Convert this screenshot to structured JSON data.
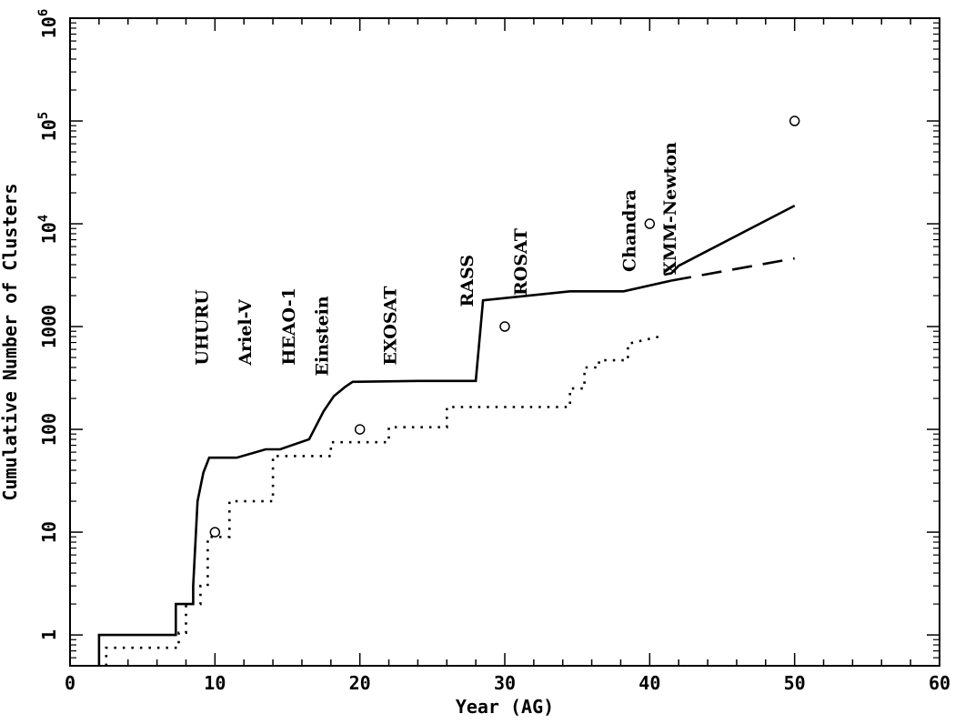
{
  "chart_data": {
    "type": "line",
    "title": "",
    "xlabel": "Year (AG)",
    "ylabel": "Cumulative Number of Clusters",
    "xlim": [
      0,
      60
    ],
    "ylim_log10": [
      -0.3,
      6
    ],
    "yscale": "log",
    "x_ticks": [
      0,
      10,
      20,
      30,
      40,
      50,
      60
    ],
    "y_ticks": [
      {
        "value": 1,
        "label": "1"
      },
      {
        "value": 10,
        "label": "10"
      },
      {
        "value": 100,
        "label": "100"
      },
      {
        "value": 1000,
        "label": "1000"
      },
      {
        "value": 10000,
        "base": "10",
        "exp": "4"
      },
      {
        "value": 100000,
        "base": "10",
        "exp": "5"
      },
      {
        "value": 1000000,
        "base": "10",
        "exp": "6"
      }
    ],
    "series": [
      {
        "style": "solid",
        "x": [
          2,
          2,
          7.3,
          7.3,
          8.5,
          8.5,
          8.8,
          9.2,
          9.6,
          10,
          11.5,
          13.5,
          14.5,
          16.5,
          17.5,
          18.2,
          19,
          19.5,
          24,
          28,
          28.5,
          34.5,
          38.2,
          41.5
        ],
        "y": [
          0.5,
          1,
          1,
          2,
          2,
          3,
          20,
          38,
          53,
          53,
          53,
          64,
          64,
          80,
          150,
          210,
          260,
          290,
          296,
          296,
          1800,
          2200,
          2200,
          2800
        ]
      },
      {
        "style": "solid",
        "x": [
          41,
          41.5,
          42,
          50
        ],
        "y": [
          3200,
          3300,
          3900,
          15000
        ]
      },
      {
        "style": "dashed",
        "x": [
          41.5,
          50
        ],
        "y": [
          2800,
          4600
        ]
      },
      {
        "style": "dotted",
        "x": [
          2.5,
          2.5,
          7.5,
          7.5,
          8,
          8,
          9,
          9,
          9.5,
          9.5,
          10.5,
          10.5,
          11,
          11,
          14,
          14,
          18,
          18,
          22,
          22,
          26,
          26,
          34.5,
          34.5,
          35.5,
          35.5,
          36.5,
          36.5,
          38.5,
          38.5,
          41
        ],
        "y": [
          0.5,
          0.75,
          0.75,
          1.05,
          1.05,
          2,
          2,
          3,
          3,
          9,
          9,
          9,
          9,
          20,
          20,
          55,
          55,
          75,
          75,
          105,
          105,
          165,
          165,
          250,
          250,
          400,
          400,
          470,
          470,
          680,
          820
        ]
      }
    ],
    "points": {
      "marker": "open-circle",
      "x": [
        10,
        20,
        30,
        40,
        50
      ],
      "y": [
        10,
        100,
        1000,
        10000,
        100000
      ]
    },
    "annotations": [
      {
        "text": "UHURU",
        "x": 9.5,
        "y": 420
      },
      {
        "text": "Ariel-V",
        "x": 12.5,
        "y": 420
      },
      {
        "text": "HEAO-1",
        "x": 15.5,
        "y": 420
      },
      {
        "text": "Einstein",
        "x": 17.8,
        "y": 330
      },
      {
        "text": "EXOSAT",
        "x": 22.5,
        "y": 420
      },
      {
        "text": "RASS",
        "x": 27.8,
        "y": 1550
      },
      {
        "text": "ROSAT",
        "x": 31.5,
        "y": 2000
      },
      {
        "text": "Chandra",
        "x": 39,
        "y": 3400
      },
      {
        "text": "XMM-Newton",
        "x": 41.8,
        "y": 3200
      }
    ]
  }
}
